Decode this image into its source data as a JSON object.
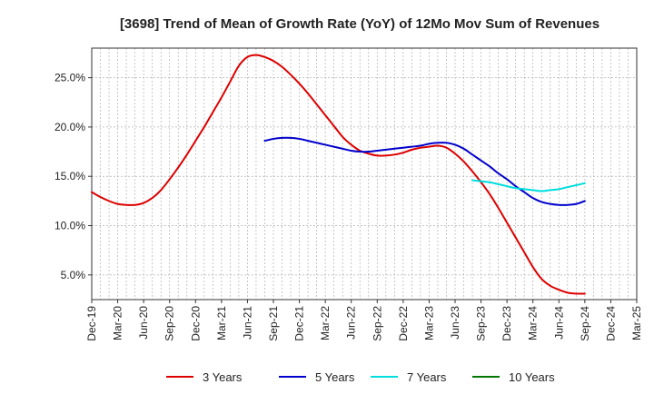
{
  "chart_data": {
    "type": "line",
    "title": "[3698]  Trend of Mean of Growth Rate (YoY) of 12Mo Mov Sum of Revenues",
    "xlabel": "",
    "ylabel": "",
    "x_ticks": [
      "Dec-19",
      "Mar-20",
      "Jun-20",
      "Sep-20",
      "Dec-20",
      "Mar-21",
      "Jun-21",
      "Sep-21",
      "Dec-21",
      "Mar-22",
      "Jun-22",
      "Sep-22",
      "Dec-22",
      "Mar-23",
      "Jun-23",
      "Sep-23",
      "Dec-23",
      "Mar-24",
      "Jun-24",
      "Sep-24",
      "Dec-24",
      "Mar-25"
    ],
    "y_ticks": [
      5.0,
      10.0,
      15.0,
      20.0,
      25.0
    ],
    "y_tick_labels": [
      "5.0%",
      "10.0%",
      "15.0%",
      "20.0%",
      "25.0%"
    ],
    "ylim": [
      2.5,
      28.0
    ],
    "xlim": [
      0,
      63
    ],
    "grid": true,
    "legend_position": "bottom",
    "series": [
      {
        "name": "3 Years",
        "color": "#dd0000",
        "x": [
          0,
          1,
          2,
          3,
          4,
          5,
          6,
          7,
          8,
          9,
          10,
          11,
          12,
          13,
          14,
          15,
          16,
          17,
          18,
          19,
          20,
          21,
          22,
          23,
          24,
          25,
          26,
          27,
          28,
          29,
          30,
          31,
          32,
          33,
          34,
          35,
          36,
          37,
          38,
          39,
          40,
          41,
          42,
          43,
          44,
          45,
          46,
          47,
          48,
          49,
          50,
          51,
          52,
          53,
          54,
          55,
          56,
          57,
          58,
          59,
          60
        ],
        "values": [
          13.4,
          12.9,
          12.5,
          12.2,
          12.1,
          12.1,
          12.3,
          12.8,
          13.6,
          14.7,
          15.9,
          17.2,
          18.6,
          20.0,
          21.5,
          23.0,
          24.6,
          26.2,
          27.1,
          27.3,
          27.1,
          26.7,
          26.1,
          25.3,
          24.4,
          23.4,
          22.3,
          21.2,
          20.1,
          19.0,
          18.2,
          17.6,
          17.3,
          17.1,
          17.1,
          17.2,
          17.4,
          17.7,
          17.9,
          18.0,
          18.1,
          17.9,
          17.3,
          16.5,
          15.5,
          14.4,
          13.2,
          11.8,
          10.3,
          8.8,
          7.3,
          5.8,
          4.6,
          3.9,
          3.5,
          3.2,
          3.1,
          3.1,
          null,
          null,
          null
        ]
      },
      {
        "name": "5 Years",
        "color": "#0000cc",
        "x": [
          20,
          21,
          22,
          23,
          24,
          25,
          26,
          27,
          28,
          29,
          30,
          31,
          32,
          33,
          34,
          35,
          36,
          37,
          38,
          39,
          40,
          41,
          42,
          43,
          44,
          45,
          46,
          47,
          48,
          49,
          50,
          51,
          52,
          53,
          54,
          55,
          56,
          57,
          58,
          59,
          60
        ],
        "values": [
          18.6,
          18.8,
          18.9,
          18.9,
          18.8,
          18.6,
          18.4,
          18.2,
          18.0,
          17.8,
          17.6,
          17.5,
          17.5,
          17.6,
          17.7,
          17.8,
          17.9,
          18.0,
          18.1,
          18.3,
          18.4,
          18.4,
          18.2,
          17.8,
          17.2,
          16.6,
          16.0,
          15.3,
          14.7,
          14.0,
          13.4,
          12.8,
          12.4,
          12.2,
          12.1,
          12.1,
          12.2,
          12.5,
          null,
          null,
          null
        ]
      },
      {
        "name": "7 Years",
        "color": "#00dddd",
        "x": [
          44,
          45,
          46,
          47,
          48,
          49,
          50,
          51,
          52,
          53,
          54,
          55,
          56,
          57
        ],
        "values": [
          14.6,
          14.5,
          14.4,
          14.2,
          14.0,
          13.8,
          13.7,
          13.6,
          13.5,
          13.6,
          13.7,
          13.9,
          14.1,
          14.3
        ]
      },
      {
        "name": "10 Years",
        "color": "#007700",
        "x": [],
        "values": []
      }
    ]
  }
}
